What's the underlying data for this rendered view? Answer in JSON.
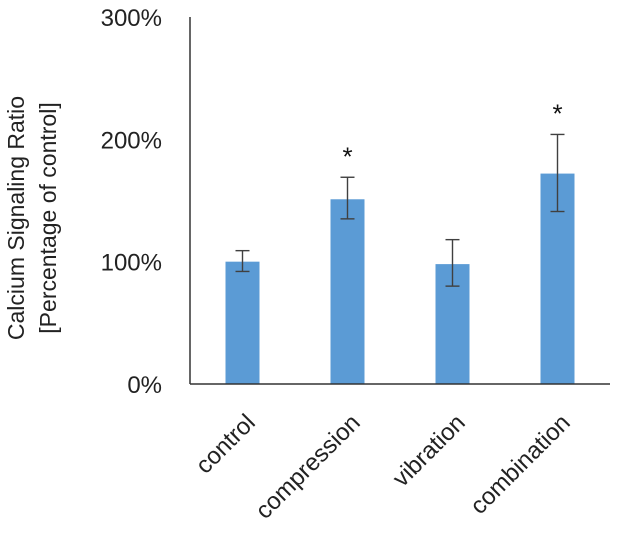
{
  "chart_data": {
    "type": "bar",
    "title": "",
    "xlabel": "",
    "ylabel_lines": [
      "Calcium Signaling Ratio",
      "[Percentage of control]"
    ],
    "categories": [
      "control",
      "compression",
      "vibration",
      "combination"
    ],
    "values": [
      100,
      151,
      98,
      172
    ],
    "error_low": [
      92,
      135,
      80,
      141
    ],
    "error_high": [
      109,
      169,
      118,
      204
    ],
    "significance": [
      "",
      "*",
      "",
      "*"
    ],
    "ylim": [
      0,
      300
    ],
    "yticks": [
      {
        "value": 0,
        "label": "0%"
      },
      {
        "value": 100,
        "label": "100%"
      },
      {
        "value": 200,
        "label": "200%"
      },
      {
        "value": 300,
        "label": "300%"
      }
    ],
    "grid": false,
    "legend": "none",
    "bar_color": "#5b9bd5",
    "axis_color": "#333333",
    "error_color": "#404040"
  }
}
